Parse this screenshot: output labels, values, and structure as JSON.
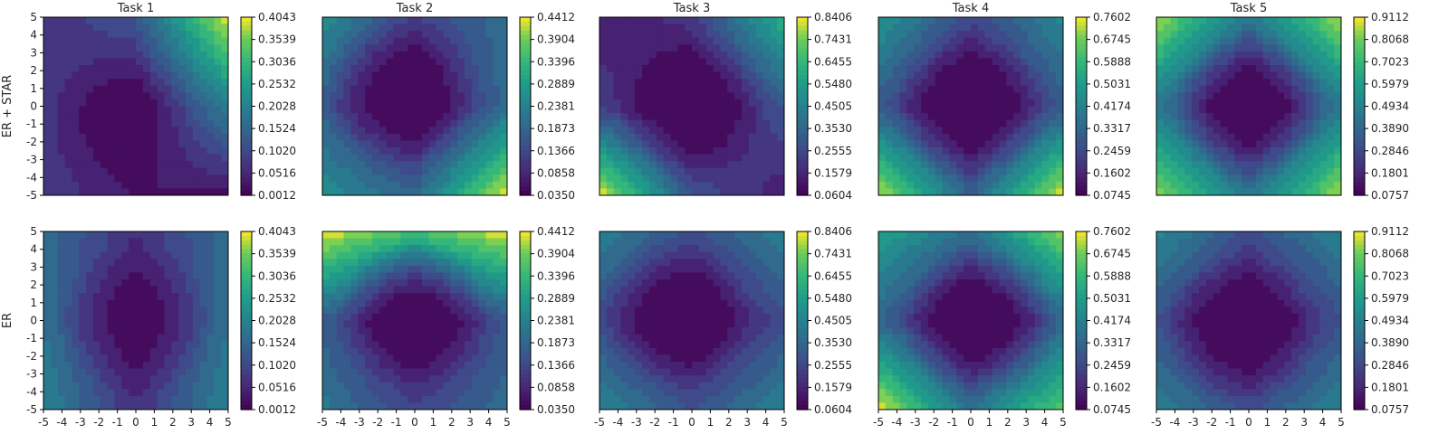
{
  "chart_data": {
    "type": "heatmap",
    "style": "filled contour loss landscapes, viridis colormap",
    "colormap": "viridis",
    "x_range": [
      -5,
      5
    ],
    "y_range": [
      -5,
      5
    ],
    "x_ticks": [
      "-5",
      "-4",
      "-3",
      "-2",
      "-1",
      "0",
      "1",
      "2",
      "3",
      "4",
      "5"
    ],
    "y_ticks": [
      "5",
      "4",
      "3",
      "2",
      "1",
      "0",
      "-1",
      "-2",
      "-3",
      "-4",
      "-5"
    ],
    "row_labels": [
      "ER + STAR",
      "ER"
    ],
    "tasks": [
      {
        "title": "Task 1",
        "colorbar_ticks": [
          "0.4043",
          "0.3539",
          "0.3036",
          "0.2532",
          "0.2028",
          "0.1524",
          "0.1020",
          "0.0516",
          "0.0012"
        ],
        "value_range": [
          0.0012,
          0.4043
        ],
        "rows": [
          {
            "row": "ER + STAR",
            "min_at": [
              -1,
              -1
            ],
            "corners": {
              "top_left": 0.06,
              "top_right": 0.4043,
              "bottom_left": 0.08,
              "bottom_right": 0.02
            },
            "edges": {
              "top": 0.12,
              "bottom": 0.03,
              "left": 0.08,
              "right": 0.2
            }
          },
          {
            "row": "ER",
            "min_at": [
              0,
              0
            ],
            "corners": {
              "top_left": 0.16,
              "top_right": 0.16,
              "bottom_left": 0.21,
              "bottom_right": 0.21
            },
            "edges": {
              "top": 0.06,
              "bottom": 0.06,
              "left": 0.17,
              "right": 0.17
            }
          }
        ]
      },
      {
        "title": "Task 2",
        "colorbar_ticks": [
          "0.4412",
          "0.3904",
          "0.3396",
          "0.2889",
          "0.2381",
          "0.1873",
          "0.1366",
          "0.0858",
          "0.0350"
        ],
        "value_range": [
          0.035,
          0.4412
        ],
        "rows": [
          {
            "row": "ER + STAR",
            "min_at": [
              -0.8,
              0.8
            ],
            "corners": {
              "top_left": 0.26,
              "top_right": 0.2,
              "bottom_left": 0.26,
              "bottom_right": 0.4412
            },
            "edges": {
              "top": 0.12,
              "bottom": 0.19,
              "left": 0.17,
              "right": 0.2
            }
          },
          {
            "row": "ER",
            "min_at": [
              0,
              0.3
            ],
            "corners": {
              "top_left": 0.4412,
              "top_right": 0.4412,
              "bottom_left": 0.22,
              "bottom_right": 0.2
            },
            "edges": {
              "top": 0.35,
              "bottom": 0.13,
              "left": 0.17,
              "right": 0.16
            }
          }
        ]
      },
      {
        "title": "Task 3",
        "colorbar_ticks": [
          "0.8406",
          "0.7431",
          "0.6455",
          "0.5480",
          "0.4505",
          "0.3530",
          "0.2555",
          "0.1579",
          "0.0604"
        ],
        "value_range": [
          0.0604,
          0.8406
        ],
        "rows": [
          {
            "row": "ER + STAR",
            "min_at": [
              0,
              0
            ],
            "corners": {
              "top_left": 0.12,
              "top_right": 0.62,
              "bottom_left": 0.8406,
              "bottom_right": 0.13
            },
            "edges": {
              "top": 0.2,
              "bottom": 0.28,
              "left": 0.22,
              "right": 0.3
            }
          },
          {
            "row": "ER",
            "min_at": [
              -1,
              0.3
            ],
            "corners": {
              "top_left": 0.45,
              "top_right": 0.45,
              "bottom_left": 0.46,
              "bottom_right": 0.46
            },
            "edges": {
              "top": 0.26,
              "bottom": 0.28,
              "left": 0.27,
              "right": 0.27
            }
          }
        ]
      },
      {
        "title": "Task 4",
        "colorbar_ticks": [
          "0.7602",
          "0.6745",
          "0.5888",
          "0.5031",
          "0.4174",
          "0.3317",
          "0.2459",
          "0.1602",
          "0.0745"
        ],
        "value_range": [
          0.0745,
          0.7602
        ],
        "rows": [
          {
            "row": "ER + STAR",
            "min_at": [
              0,
              0
            ],
            "corners": {
              "top_left": 0.48,
              "top_right": 0.44,
              "bottom_left": 0.74,
              "bottom_right": 0.7602
            },
            "edges": {
              "top": 0.24,
              "bottom": 0.31,
              "left": 0.29,
              "right": 0.29
            }
          },
          {
            "row": "ER",
            "min_at": [
              0.5,
              0
            ],
            "corners": {
              "top_left": 0.52,
              "top_right": 0.7,
              "bottom_left": 0.7602,
              "bottom_right": 0.66
            },
            "edges": {
              "top": 0.36,
              "bottom": 0.36,
              "left": 0.33,
              "right": 0.33
            }
          }
        ]
      },
      {
        "title": "Task 5",
        "colorbar_ticks": [
          "0.9112",
          "0.8068",
          "0.7023",
          "0.5979",
          "0.4934",
          "0.3890",
          "0.2846",
          "0.1801",
          "0.0757"
        ],
        "value_range": [
          0.0757,
          0.9112
        ],
        "rows": [
          {
            "row": "ER + STAR",
            "min_at": [
              0,
              0
            ],
            "corners": {
              "top_left": 0.86,
              "top_right": 0.86,
              "bottom_left": 0.84,
              "bottom_right": 0.86
            },
            "edges": {
              "top": 0.44,
              "bottom": 0.44,
              "left": 0.46,
              "right": 0.46
            }
          },
          {
            "row": "ER",
            "min_at": [
              -0.5,
              -0.5
            ],
            "corners": {
              "top_left": 0.52,
              "top_right": 0.5,
              "bottom_left": 0.48,
              "bottom_right": 0.5
            },
            "edges": {
              "top": 0.3,
              "bottom": 0.3,
              "left": 0.31,
              "right": 0.31
            }
          }
        ]
      }
    ]
  }
}
